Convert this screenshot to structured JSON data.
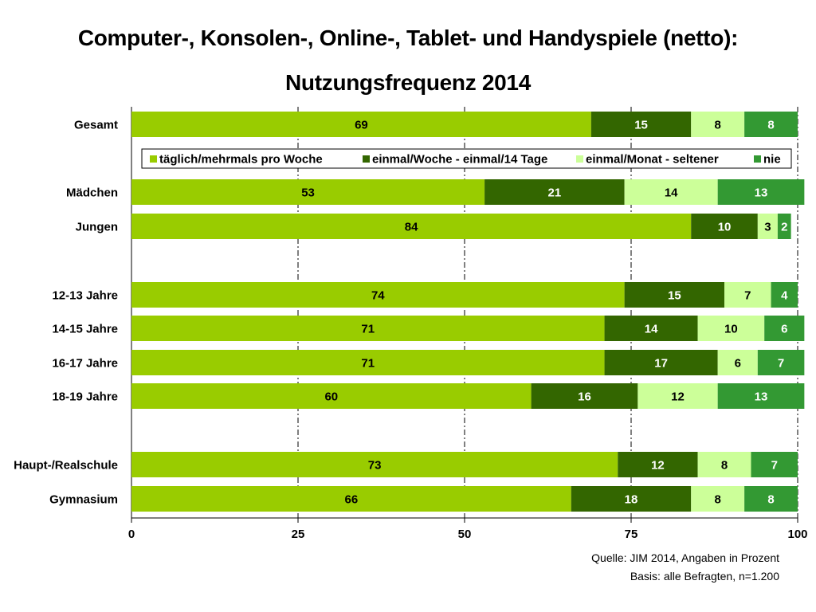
{
  "title_line1": "Computer-, Konsolen-, Online-, Tablet- und Handyspiele (netto):",
  "title_line2": "Nutzungsfrequenz 2014",
  "source_line1": "Quelle: JIM 2014, Angaben in Prozent",
  "source_line2": "Basis: alle Befragten, n=1.200",
  "colors": {
    "daily": "#99cc00",
    "weekly": "#336600",
    "monthly": "#ccff99",
    "never": "#339933"
  },
  "chart_data": {
    "type": "bar",
    "orientation": "horizontal",
    "stacked": true,
    "title": "Computer-, Konsolen-, Online-, Tablet- und Handyspiele (netto): Nutzungsfrequenz 2014",
    "categories": [
      "Gesamt",
      "Mädchen",
      "Jungen",
      "12-13 Jahre",
      "14-15 Jahre",
      "16-17 Jahre",
      "18-19 Jahre",
      "Haupt-/Realschule",
      "Gymnasium"
    ],
    "series": [
      {
        "name": "täglich/mehrmals pro Woche",
        "values": [
          69,
          53,
          84,
          74,
          71,
          71,
          60,
          73,
          66
        ]
      },
      {
        "name": "einmal/Woche - einmal/14 Tage",
        "values": [
          15,
          21,
          10,
          15,
          14,
          17,
          16,
          12,
          18
        ]
      },
      {
        "name": "einmal/Monat - seltener",
        "values": [
          8,
          14,
          3,
          7,
          10,
          6,
          12,
          8,
          8
        ]
      },
      {
        "name": "nie",
        "values": [
          8,
          13,
          2,
          4,
          6,
          7,
          13,
          7,
          8
        ]
      }
    ],
    "xlim": [
      0,
      100
    ],
    "xticks": [
      0,
      25,
      50,
      75,
      100
    ],
    "grid": true,
    "legend_position": "inside-top"
  }
}
